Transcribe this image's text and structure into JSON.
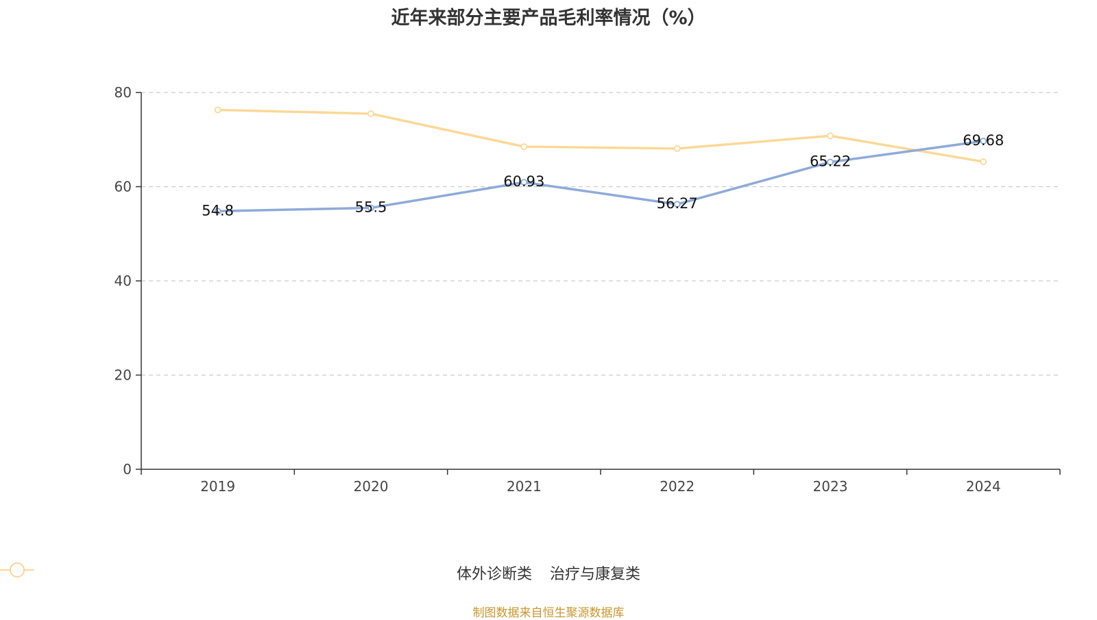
{
  "chart_data": {
    "type": "line",
    "title": "近年来部分主要产品毛利率情况（%）",
    "categories": [
      "2019",
      "2020",
      "2021",
      "2022",
      "2023",
      "2024"
    ],
    "ylim": [
      0,
      80
    ],
    "yticks": [
      0,
      20,
      40,
      60,
      80
    ],
    "grid": true,
    "legend_position": "bottom",
    "series": [
      {
        "name": "体外诊断类",
        "color": "#8eaad8",
        "values": [
          54.8,
          55.5,
          60.93,
          56.27,
          65.22,
          69.68
        ],
        "labels": [
          "54.8",
          "55.5",
          "60.93",
          "56.27",
          "65.22",
          "69.68"
        ]
      },
      {
        "name": "治疗与康复类",
        "color": "#fbd897",
        "values": [
          76.3,
          75.5,
          68.5,
          68.1,
          70.8,
          65.3
        ],
        "labels": []
      }
    ]
  },
  "source_note": "制图数据来自恒生聚源数据库"
}
